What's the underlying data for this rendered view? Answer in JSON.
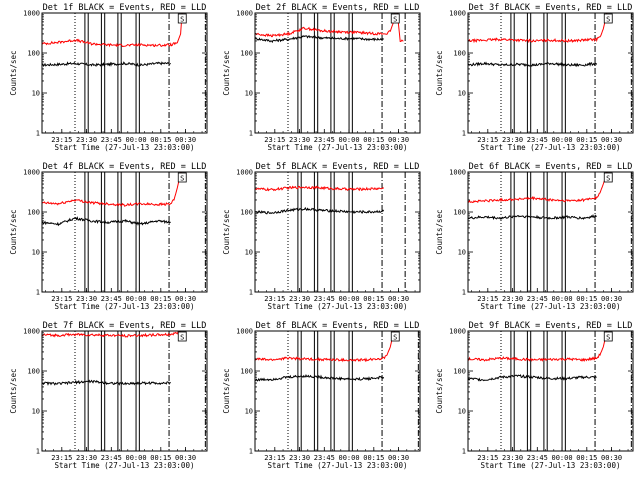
{
  "figure": {
    "xtick_labels": [
      "23:15",
      "23:30",
      "23:45",
      "00:00",
      "00:15",
      "00:30"
    ],
    "xlabel": "Start Time (27-Jul-13 23:03:00)",
    "ylabel": "Counts/sec",
    "ytick_labels": [
      "1",
      "10",
      "100",
      "1000"
    ],
    "event_marker": "S"
  },
  "colors": {
    "events": "#000000",
    "lld": "#ff0000",
    "axes": "#000000",
    "background": "#ffffff"
  },
  "chart_data": [
    {
      "type": "line",
      "title": "Det 1f BLACK = Events, RED = LLD",
      "x_axis": "minutes since 23:03:00",
      "xlim": [
        0,
        100
      ],
      "ylim": [
        1,
        1000
      ],
      "yscale": "log",
      "xlabel": "Start Time (27-Jul-13 23:03:00)",
      "ylabel": "Counts/sec",
      "series": [
        {
          "name": "Events",
          "color": "#000000",
          "x": [
            0,
            10,
            20,
            30,
            40,
            50,
            60,
            70,
            78
          ],
          "y": [
            50,
            52,
            55,
            50,
            52,
            55,
            50,
            55,
            55
          ]
        },
        {
          "name": "LLD",
          "color": "#ff0000",
          "x": [
            0,
            10,
            20,
            30,
            40,
            50,
            60,
            70,
            78,
            80,
            82,
            84,
            85,
            86,
            87
          ],
          "y": [
            170,
            185,
            210,
            170,
            160,
            155,
            160,
            155,
            160,
            170,
            180,
            300,
            1100,
            1200,
            1200
          ]
        }
      ],
      "vlines_dotted": [
        20
      ],
      "vlines_solid": [
        26,
        28,
        36,
        38,
        46,
        48,
        57,
        59
      ],
      "vlines_dashdot": [
        77,
        99
      ],
      "s_marker_x": 85
    },
    {
      "type": "line",
      "title": "Det 2f BLACK = Events, RED = LLD",
      "x_axis": "minutes since 23:03:00",
      "xlim": [
        0,
        100
      ],
      "ylim": [
        1,
        1000
      ],
      "yscale": "log",
      "xlabel": "Start Time (27-Jul-13 23:03:00)",
      "ylabel": "Counts/sec",
      "series": [
        {
          "name": "Events",
          "color": "#000000",
          "x": [
            0,
            10,
            20,
            30,
            40,
            50,
            60,
            70,
            78
          ],
          "y": [
            230,
            200,
            220,
            260,
            240,
            230,
            230,
            220,
            220
          ]
        },
        {
          "name": "LLD",
          "color": "#ff0000",
          "x": [
            0,
            10,
            20,
            30,
            40,
            50,
            60,
            70,
            78,
            80,
            82,
            84,
            85,
            86,
            88,
            90
          ],
          "y": [
            300,
            270,
            300,
            420,
            360,
            340,
            330,
            310,
            300,
            310,
            350,
            600,
            1100,
            1200,
            200,
            200
          ]
        }
      ],
      "vlines_dotted": [
        20
      ],
      "vlines_solid": [
        26,
        28,
        36,
        38,
        46,
        48,
        57,
        59
      ],
      "vlines_dashdot": [
        77,
        91
      ],
      "s_marker_x": 85
    },
    {
      "type": "line",
      "title": "Det 3f BLACK = Events, RED = LLD",
      "x_axis": "minutes since 23:03:00",
      "xlim": [
        0,
        100
      ],
      "ylim": [
        1,
        1000
      ],
      "yscale": "log",
      "xlabel": "Start Time (27-Jul-13 23:03:00)",
      "ylabel": "Counts/sec",
      "series": [
        {
          "name": "Events",
          "color": "#000000",
          "x": [
            0,
            10,
            20,
            30,
            40,
            50,
            60,
            70,
            78
          ],
          "y": [
            50,
            55,
            50,
            52,
            50,
            55,
            50,
            50,
            55
          ]
        },
        {
          "name": "LLD",
          "color": "#ff0000",
          "x": [
            0,
            10,
            20,
            30,
            40,
            50,
            60,
            70,
            78,
            80,
            82,
            84,
            85
          ],
          "y": [
            200,
            210,
            220,
            210,
            200,
            210,
            200,
            210,
            220,
            260,
            400,
            900,
            1200
          ]
        }
      ],
      "vlines_dotted": [
        20
      ],
      "vlines_solid": [
        26,
        28,
        36,
        38,
        46,
        48,
        57,
        59
      ],
      "vlines_dashdot": [
        77,
        99
      ],
      "s_marker_x": 85
    },
    {
      "type": "line",
      "title": "Det 4f BLACK = Events, RED = LLD",
      "x_axis": "minutes since 23:03:00",
      "xlim": [
        0,
        100
      ],
      "ylim": [
        1,
        1000
      ],
      "yscale": "log",
      "xlabel": "Start Time (27-Jul-13 23:03:00)",
      "ylabel": "Counts/sec",
      "series": [
        {
          "name": "Events",
          "color": "#000000",
          "x": [
            0,
            10,
            20,
            30,
            40,
            50,
            60,
            70,
            78
          ],
          "y": [
            55,
            50,
            70,
            60,
            55,
            60,
            50,
            60,
            55
          ]
        },
        {
          "name": "LLD",
          "color": "#ff0000",
          "x": [
            0,
            10,
            20,
            30,
            40,
            50,
            60,
            70,
            78,
            80,
            82,
            84,
            85
          ],
          "y": [
            170,
            160,
            200,
            170,
            160,
            150,
            160,
            155,
            160,
            200,
            400,
            900,
            1200
          ]
        }
      ],
      "vlines_dotted": [
        20
      ],
      "vlines_solid": [
        26,
        28,
        36,
        38,
        46,
        48,
        57,
        59
      ],
      "vlines_dashdot": [
        77,
        99
      ],
      "s_marker_x": 85
    },
    {
      "type": "line",
      "title": "Det 5f BLACK = Events, RED = LLD",
      "x_axis": "minutes since 23:03:00",
      "xlim": [
        0,
        100
      ],
      "ylim": [
        1,
        1000
      ],
      "yscale": "log",
      "xlabel": "Start Time (27-Jul-13 23:03:00)",
      "ylabel": "Counts/sec",
      "series": [
        {
          "name": "Events",
          "color": "#000000",
          "x": [
            0,
            10,
            20,
            30,
            40,
            50,
            60,
            70,
            78
          ],
          "y": [
            100,
            95,
            110,
            120,
            110,
            105,
            100,
            100,
            105
          ]
        },
        {
          "name": "LLD",
          "color": "#ff0000",
          "x": [
            0,
            10,
            20,
            30,
            40,
            50,
            60,
            70,
            78
          ],
          "y": [
            380,
            360,
            400,
            420,
            400,
            380,
            370,
            380,
            390
          ]
        }
      ],
      "vlines_dotted": [
        20
      ],
      "vlines_solid": [
        26,
        28,
        36,
        38,
        46,
        48,
        57,
        59
      ],
      "vlines_dashdot": [
        77,
        91
      ],
      "s_marker_x": null
    },
    {
      "type": "line",
      "title": "Det 6f BLACK = Events, RED = LLD",
      "x_axis": "minutes since 23:03:00",
      "xlim": [
        0,
        100
      ],
      "ylim": [
        1,
        1000
      ],
      "yscale": "log",
      "xlabel": "Start Time (27-Jul-13 23:03:00)",
      "ylabel": "Counts/sec",
      "series": [
        {
          "name": "Events",
          "color": "#000000",
          "x": [
            0,
            10,
            20,
            30,
            40,
            50,
            60,
            70,
            78
          ],
          "y": [
            70,
            75,
            70,
            80,
            75,
            70,
            75,
            70,
            80
          ]
        },
        {
          "name": "LLD",
          "color": "#ff0000",
          "x": [
            0,
            10,
            20,
            30,
            40,
            50,
            60,
            70,
            78,
            80,
            82,
            84,
            85
          ],
          "y": [
            180,
            190,
            200,
            210,
            220,
            200,
            190,
            200,
            230,
            300,
            500,
            900,
            1200
          ]
        }
      ],
      "vlines_dotted": [
        20
      ],
      "vlines_solid": [
        26,
        28,
        36,
        38,
        46,
        48,
        57,
        59
      ],
      "vlines_dashdot": [
        77,
        99
      ],
      "s_marker_x": 85
    },
    {
      "type": "line",
      "title": "Det 7f BLACK = Events, RED = LLD",
      "x_axis": "minutes since 23:03:00",
      "xlim": [
        0,
        100
      ],
      "ylim": [
        1,
        1000
      ],
      "yscale": "log",
      "xlabel": "Start Time (27-Jul-13 23:03:00)",
      "ylabel": "Counts/sec",
      "series": [
        {
          "name": "Events",
          "color": "#000000",
          "x": [
            0,
            10,
            20,
            30,
            40,
            50,
            60,
            70,
            78
          ],
          "y": [
            50,
            48,
            52,
            55,
            50,
            48,
            50,
            50,
            50
          ]
        },
        {
          "name": "LLD",
          "color": "#ff0000",
          "x": [
            0,
            10,
            20,
            30,
            40,
            50,
            60,
            70,
            78,
            80,
            82,
            84,
            85
          ],
          "y": [
            800,
            780,
            820,
            800,
            780,
            760,
            780,
            800,
            820,
            850,
            900,
            1000,
            1200
          ]
        }
      ],
      "vlines_dotted": [
        20
      ],
      "vlines_solid": [
        26,
        28,
        36,
        38,
        46,
        48,
        57,
        59
      ],
      "vlines_dashdot": [
        77,
        99
      ],
      "s_marker_x": 85
    },
    {
      "type": "line",
      "title": "Det 8f BLACK = Events, RED = LLD",
      "x_axis": "minutes since 23:03:00",
      "xlim": [
        0,
        100
      ],
      "ylim": [
        1,
        1000
      ],
      "yscale": "log",
      "xlabel": "Start Time (27-Jul-13 23:03:00)",
      "ylabel": "Counts/sec",
      "series": [
        {
          "name": "Events",
          "color": "#000000",
          "x": [
            0,
            10,
            20,
            30,
            40,
            50,
            60,
            70,
            78
          ],
          "y": [
            60,
            62,
            70,
            75,
            70,
            65,
            62,
            65,
            70
          ]
        },
        {
          "name": "LLD",
          "color": "#ff0000",
          "x": [
            0,
            10,
            20,
            30,
            40,
            50,
            60,
            70,
            78,
            80,
            82,
            84,
            85
          ],
          "y": [
            200,
            190,
            210,
            200,
            195,
            190,
            185,
            195,
            210,
            250,
            400,
            900,
            1200
          ]
        }
      ],
      "vlines_dotted": [
        20
      ],
      "vlines_solid": [
        26,
        28,
        36,
        38,
        46,
        48,
        57,
        59
      ],
      "vlines_dashdot": [
        77,
        99
      ],
      "s_marker_x": 85
    },
    {
      "type": "line",
      "title": "Det 9f BLACK = Events, RED = LLD",
      "x_axis": "minutes since 23:03:00",
      "xlim": [
        0,
        100
      ],
      "ylim": [
        1,
        1000
      ],
      "yscale": "log",
      "xlabel": "Start Time (27-Jul-13 23:03:00)",
      "ylabel": "Counts/sec",
      "series": [
        {
          "name": "Events",
          "color": "#000000",
          "x": [
            0,
            10,
            20,
            30,
            40,
            50,
            60,
            70,
            78
          ],
          "y": [
            65,
            60,
            70,
            75,
            70,
            65,
            65,
            70,
            70
          ]
        },
        {
          "name": "LLD",
          "color": "#ff0000",
          "x": [
            0,
            10,
            20,
            30,
            40,
            50,
            60,
            70,
            78,
            80,
            82,
            84,
            85
          ],
          "y": [
            200,
            190,
            210,
            200,
            190,
            195,
            200,
            190,
            210,
            260,
            400,
            900,
            1200
          ]
        }
      ],
      "vlines_dotted": [
        20
      ],
      "vlines_solid": [
        26,
        28,
        36,
        38,
        46,
        48,
        57,
        59
      ],
      "vlines_dashdot": [
        77,
        99
      ],
      "s_marker_x": 85
    }
  ]
}
